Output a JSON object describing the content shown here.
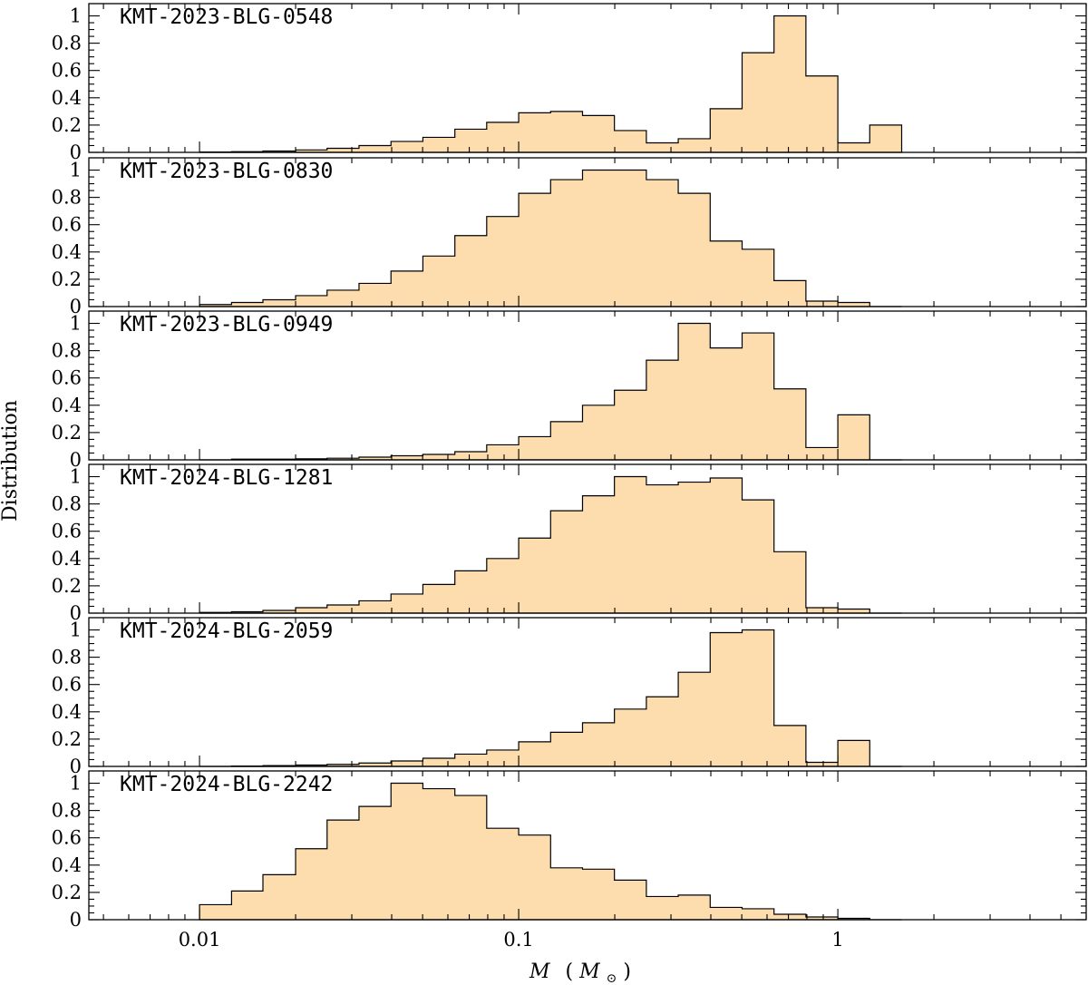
{
  "chart_data": {
    "type": "histogram",
    "xlabel_var": "M",
    "xlabel_unit_open": "(",
    "xlabel_unit_var": "M",
    "xlabel_unit_sub": "⊙",
    "xlabel_unit_close": ")",
    "ylabel": "Distribution",
    "x_scale": "log",
    "xlim": [
      0.0045,
      6.0
    ],
    "ylim": [
      0,
      1.05
    ],
    "x_tick_labels": [
      {
        "value": 0.01,
        "label": "0.01"
      },
      {
        "value": 0.1,
        "label": "0.1"
      },
      {
        "value": 1,
        "label": "1"
      }
    ],
    "y_tick_labels": [
      {
        "value": 0,
        "label": "0"
      },
      {
        "value": 0.2,
        "label": "0.2"
      },
      {
        "value": 0.4,
        "label": "0.4"
      },
      {
        "value": 0.6,
        "label": "0.6"
      },
      {
        "value": 0.8,
        "label": "0.8"
      },
      {
        "value": 1,
        "label": "1"
      }
    ],
    "bin_edges": [
      0.01,
      0.0126,
      0.0158,
      0.02,
      0.0251,
      0.0316,
      0.0398,
      0.0501,
      0.0631,
      0.0794,
      0.1,
      0.1259,
      0.1585,
      0.1995,
      0.2512,
      0.3162,
      0.3981,
      0.5012,
      0.631,
      0.7943,
      1.0,
      1.2589,
      1.5849
    ],
    "panels": [
      {
        "name": "KMT-2023-BLG-0548",
        "values": [
          0.003,
          0.005,
          0.01,
          0.018,
          0.03,
          0.05,
          0.08,
          0.11,
          0.17,
          0.22,
          0.29,
          0.3,
          0.27,
          0.16,
          0.07,
          0.1,
          0.32,
          0.73,
          1.0,
          0.56,
          0.07,
          0.2
        ]
      },
      {
        "name": "KMT-2023-BLG-0830",
        "values": [
          0.015,
          0.03,
          0.05,
          0.08,
          0.12,
          0.17,
          0.26,
          0.37,
          0.52,
          0.66,
          0.83,
          0.93,
          1.0,
          1.0,
          0.93,
          0.83,
          0.48,
          0.42,
          0.19,
          0.04,
          0.03,
          0.0
        ]
      },
      {
        "name": "KMT-2023-BLG-0949",
        "values": [
          0.0,
          0.005,
          0.005,
          0.008,
          0.012,
          0.02,
          0.03,
          0.04,
          0.06,
          0.11,
          0.17,
          0.28,
          0.4,
          0.51,
          0.73,
          1.0,
          0.82,
          0.93,
          0.52,
          0.09,
          0.33,
          0.0
        ]
      },
      {
        "name": "KMT-2024-BLG-1281",
        "values": [
          0.005,
          0.01,
          0.02,
          0.04,
          0.06,
          0.09,
          0.14,
          0.21,
          0.31,
          0.4,
          0.55,
          0.75,
          0.86,
          1.0,
          0.94,
          0.96,
          0.99,
          0.83,
          0.45,
          0.04,
          0.03,
          0.0
        ]
      },
      {
        "name": "KMT-2024-BLG-2059",
        "values": [
          0.0,
          0.003,
          0.006,
          0.01,
          0.015,
          0.025,
          0.04,
          0.06,
          0.09,
          0.12,
          0.18,
          0.25,
          0.32,
          0.42,
          0.51,
          0.69,
          0.98,
          1.0,
          0.3,
          0.03,
          0.19,
          0.0
        ]
      },
      {
        "name": "KMT-2024-BLG-2242",
        "values": [
          0.11,
          0.21,
          0.33,
          0.52,
          0.73,
          0.83,
          1.0,
          0.96,
          0.91,
          0.67,
          0.62,
          0.38,
          0.37,
          0.29,
          0.17,
          0.18,
          0.09,
          0.08,
          0.04,
          0.02,
          0.01,
          0.0
        ]
      }
    ]
  }
}
